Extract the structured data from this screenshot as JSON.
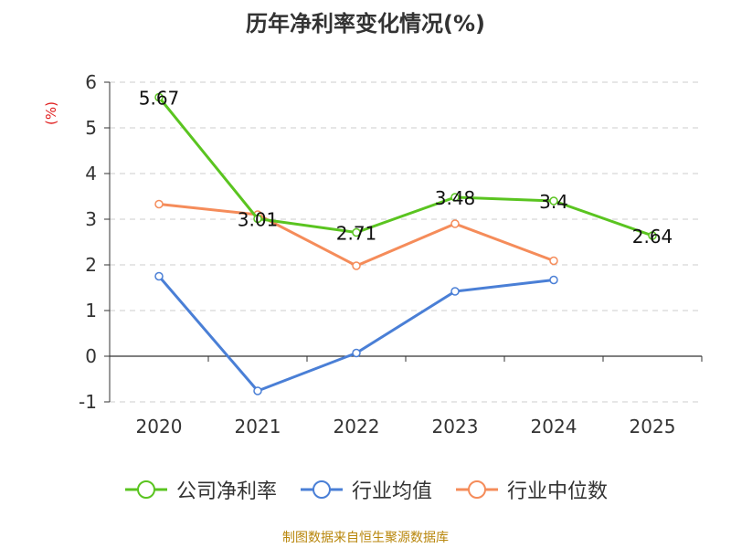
{
  "chart_data": {
    "type": "line",
    "title": "历年净利率变化情况(%)",
    "unit_label": "(%)",
    "categories": [
      "2020",
      "2021",
      "2022",
      "2023",
      "2024",
      "2025"
    ],
    "ylim": [
      -1,
      6
    ],
    "yticks": [
      "6",
      "5",
      "4",
      "3",
      "2",
      "1",
      "0",
      "-1"
    ],
    "grid": true,
    "legend_position": "bottom",
    "series": [
      {
        "name": "公司净利率",
        "color": "#5ac420",
        "values": [
          5.67,
          3.01,
          2.71,
          3.48,
          3.4,
          2.64
        ],
        "labels": [
          "5.67",
          "3.01",
          "2.71",
          "3.48",
          "3.4",
          "2.64"
        ]
      },
      {
        "name": "行业均值",
        "color": "#4a7fd6",
        "values": [
          1.75,
          -0.76,
          0.07,
          1.42,
          1.67,
          null
        ]
      },
      {
        "name": "行业中位数",
        "color": "#f58c5a",
        "values": [
          3.33,
          3.1,
          1.98,
          2.9,
          2.09,
          null
        ]
      }
    ]
  },
  "source": "制图数据来自恒生聚源数据库"
}
